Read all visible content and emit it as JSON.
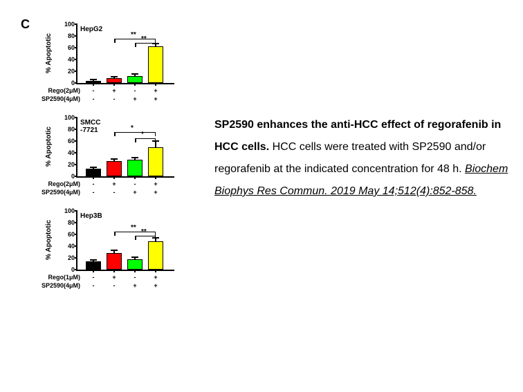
{
  "panel_label": "C",
  "caption": {
    "title": "SP2590 enhances the anti-HCC effect of regorafenib in HCC cells.",
    "body_part1": "HCC cells were treated with SP2590 and/or regorafenib at the indicated concentration for 48 h. ",
    "citation": "Biochem Biophys Res Commun. 2019 May 14;512(4):852-858."
  },
  "ylabel": "% Apoptotic",
  "ylim": [
    0,
    100
  ],
  "yticks": [
    0,
    20,
    40,
    60,
    80,
    100
  ],
  "bar_colors": [
    "#000000",
    "#ff0000",
    "#00ff00",
    "#ffff00"
  ],
  "bar_border": "#000000",
  "background": "#ffffff",
  "charts": [
    {
      "title": "HepG2",
      "values": [
        4,
        8,
        12,
        62
      ],
      "errors": [
        2,
        3,
        3,
        5
      ],
      "sig": [
        {
          "from": 1,
          "to": 3,
          "label": "**",
          "y": 75
        },
        {
          "from": 2,
          "to": 3,
          "label": "**",
          "y": 68
        }
      ],
      "cond_rows": [
        {
          "label": "Rego(2μM)",
          "vals": [
            "-",
            "+",
            "-",
            "+"
          ]
        },
        {
          "label": "SP2590(4μM)",
          "vals": [
            "-",
            "-",
            "+",
            "+"
          ]
        }
      ]
    },
    {
      "title": "SMCC",
      "title2": "-7721",
      "values": [
        13,
        26,
        28,
        50
      ],
      "errors": [
        2,
        4,
        4,
        10
      ],
      "sig": [
        {
          "from": 1,
          "to": 3,
          "label": "*",
          "y": 75
        },
        {
          "from": 2,
          "to": 3,
          "label": "*",
          "y": 65
        }
      ],
      "cond_rows": [
        {
          "label": "Rego(2μM)",
          "vals": [
            "-",
            "+",
            "-",
            "+"
          ]
        },
        {
          "label": "SP2590(4μM)",
          "vals": [
            "-",
            "-",
            "+",
            "+"
          ]
        }
      ]
    },
    {
      "title": "Hep3B",
      "values": [
        14,
        28,
        18,
        48
      ],
      "errors": [
        2,
        5,
        3,
        6
      ],
      "sig": [
        {
          "from": 1,
          "to": 3,
          "label": "**",
          "y": 65
        },
        {
          "from": 2,
          "to": 3,
          "label": "**",
          "y": 58
        }
      ],
      "cond_rows": [
        {
          "label": "Rego(1μM)",
          "vals": [
            "-",
            "+",
            "-",
            "+"
          ]
        },
        {
          "label": "SP2590(4μM)",
          "vals": [
            "-",
            "-",
            "+",
            "+"
          ]
        }
      ]
    }
  ]
}
